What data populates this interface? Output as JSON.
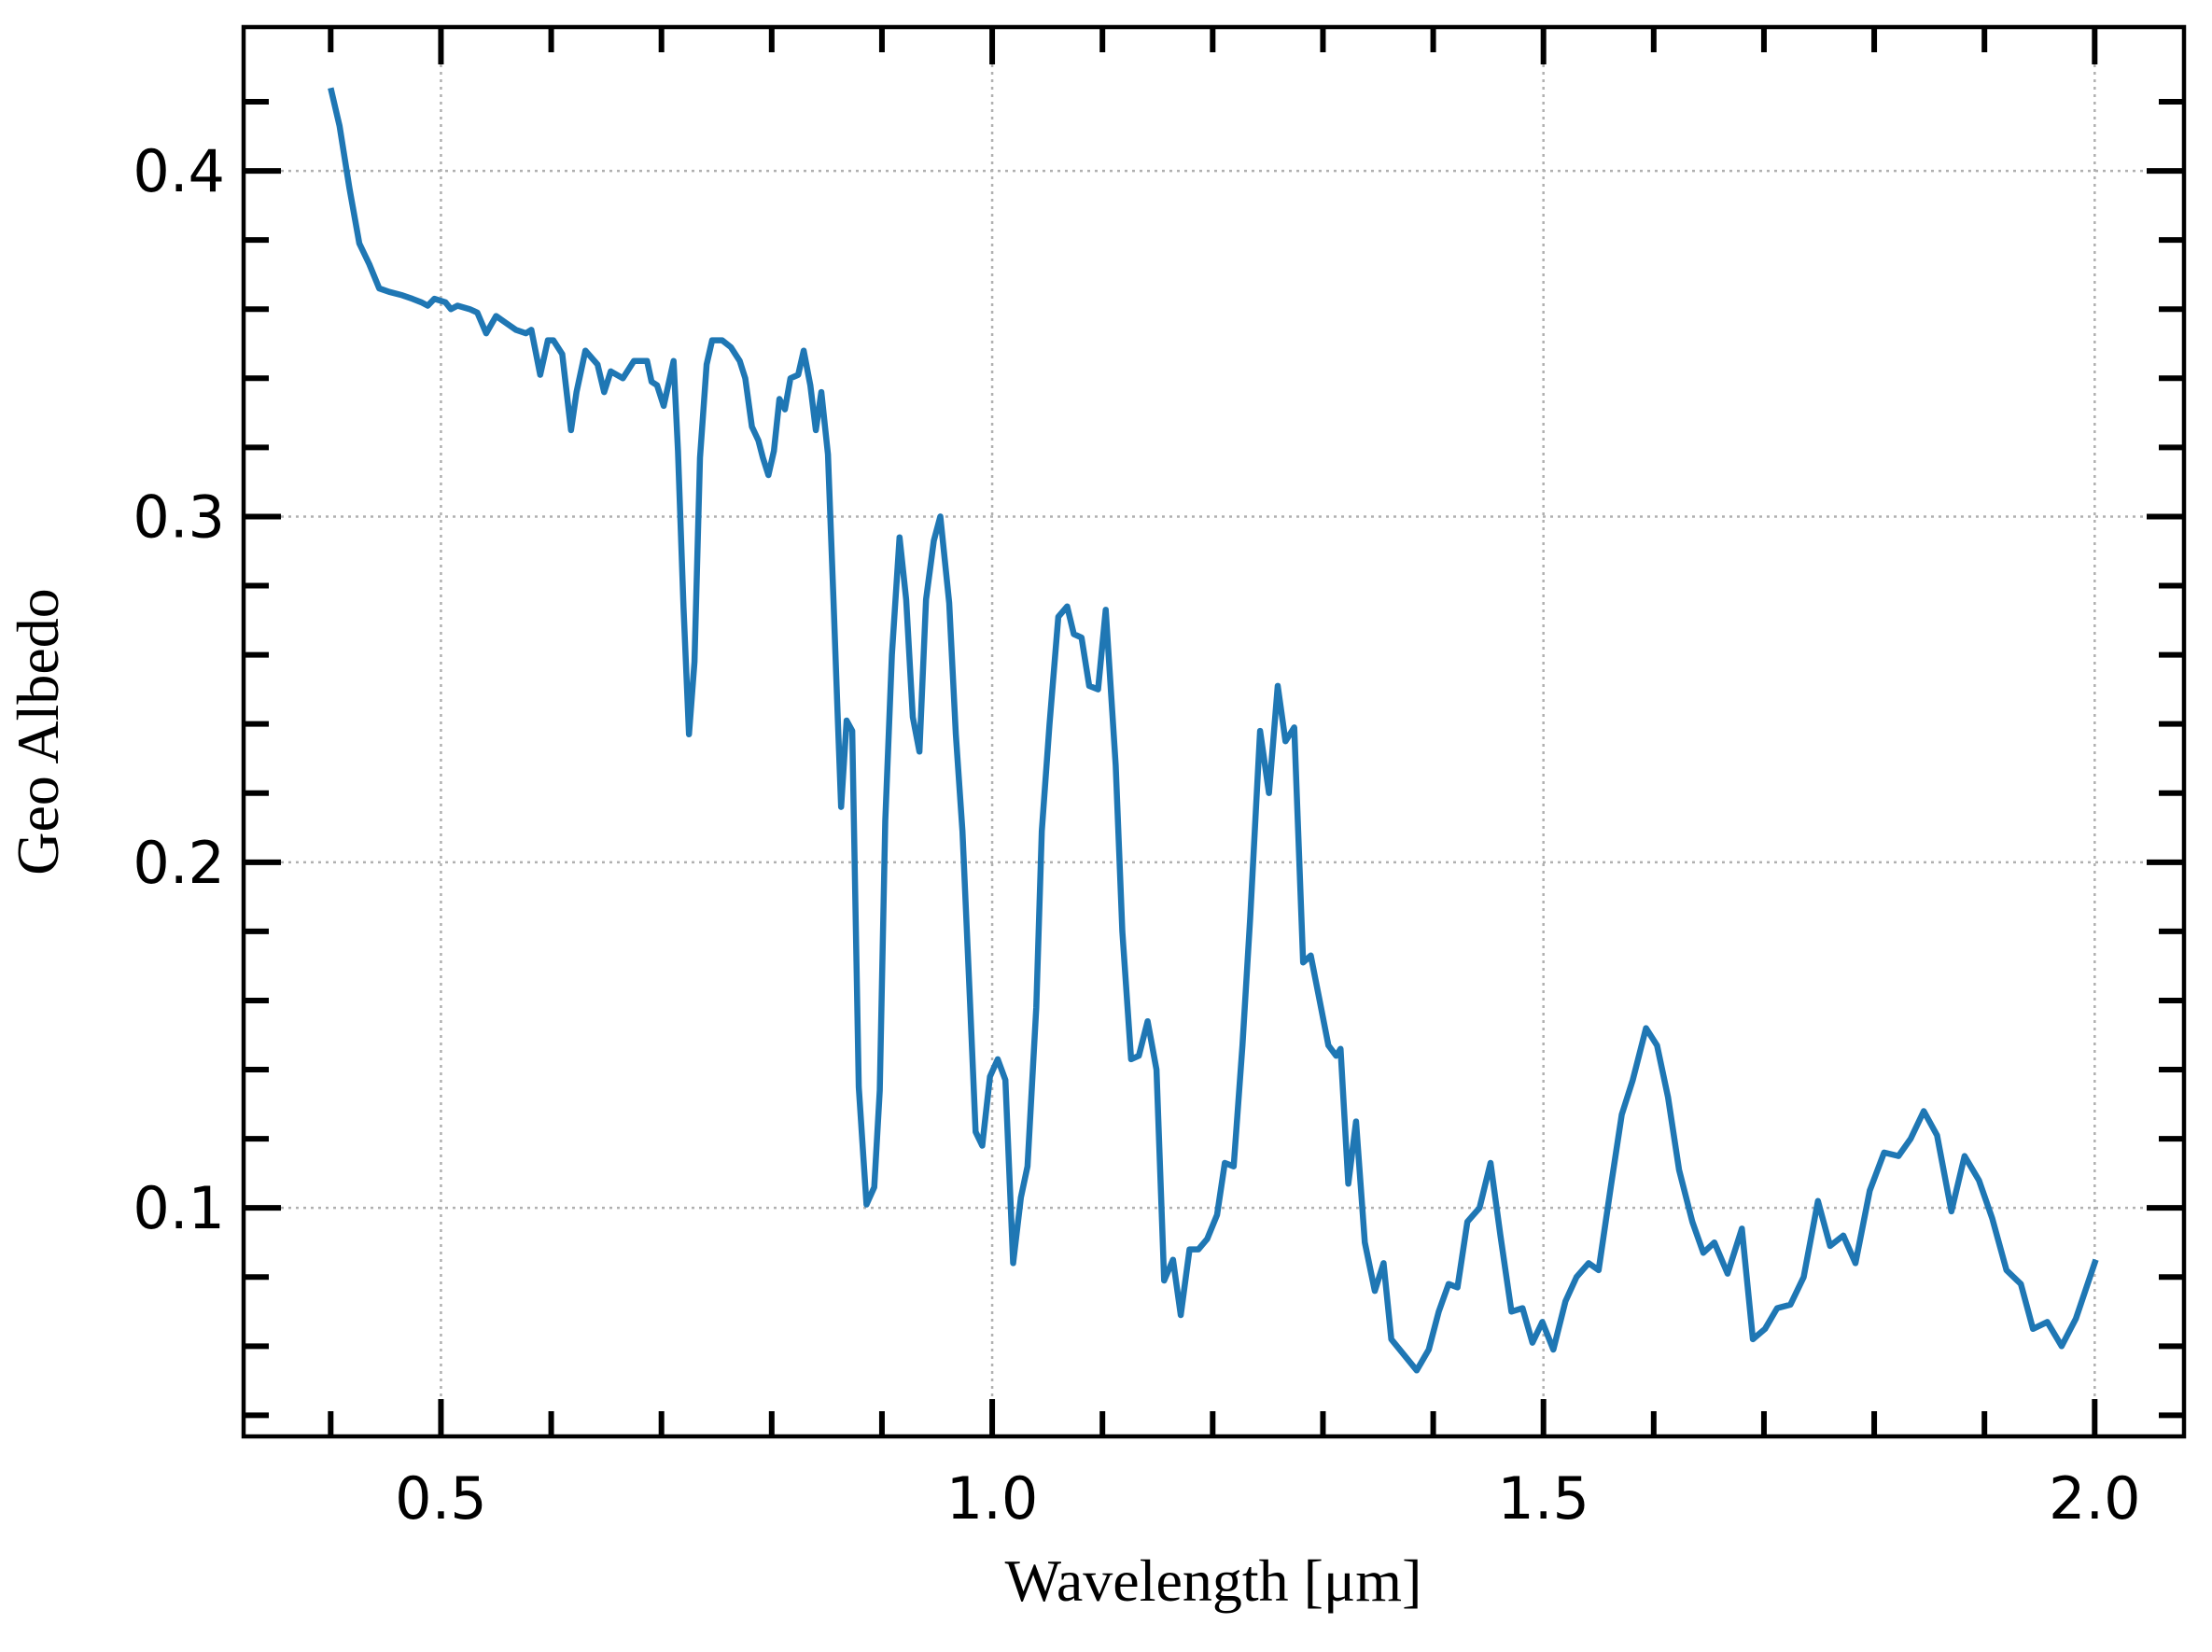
{
  "chart_data": {
    "type": "line",
    "xlabel": "Wavelength [μm]",
    "ylabel": "Geo Albedo",
    "x": [
      0.4,
      0.408,
      0.417,
      0.426,
      0.435,
      0.444,
      0.453,
      0.465,
      0.474,
      0.482,
      0.488,
      0.494,
      0.504,
      0.509,
      0.515,
      0.526,
      0.533,
      0.541,
      0.55,
      0.559,
      0.568,
      0.577,
      0.582,
      0.59,
      0.597,
      0.602,
      0.61,
      0.618,
      0.623,
      0.631,
      0.642,
      0.648,
      0.654,
      0.665,
      0.675,
      0.681,
      0.687,
      0.691,
      0.696,
      0.702,
      0.711,
      0.715,
      0.72,
      0.725,
      0.73,
      0.735,
      0.741,
      0.746,
      0.755,
      0.763,
      0.771,
      0.776,
      0.782,
      0.788,
      0.792,
      0.797,
      0.802,
      0.807,
      0.812,
      0.817,
      0.824,
      0.829,
      0.835,
      0.84,
      0.845,
      0.851,
      0.856,
      0.86,
      0.863,
      0.868,
      0.873,
      0.879,
      0.886,
      0.893,
      0.898,
      0.903,
      0.909,
      0.916,
      0.922,
      0.928,
      0.934,
      0.94,
      0.947,
      0.953,
      0.961,
      0.967,
      0.973,
      0.98,
      0.985,
      0.991,
      0.998,
      1.005,
      1.012,
      1.019,
      1.026,
      1.032,
      1.04,
      1.045,
      1.052,
      1.06,
      1.068,
      1.074,
      1.081,
      1.088,
      1.096,
      1.103,
      1.112,
      1.118,
      1.126,
      1.133,
      1.141,
      1.149,
      1.156,
      1.164,
      1.171,
      1.179,
      1.187,
      1.195,
      1.204,
      1.211,
      1.219,
      1.227,
      1.234,
      1.243,
      1.251,
      1.259,
      1.266,
      1.274,
      1.282,
      1.289,
      1.297,
      1.305,
      1.312,
      1.316,
      1.323,
      1.33,
      1.338,
      1.347,
      1.355,
      1.362,
      1.385,
      1.396,
      1.405,
      1.414,
      1.422,
      1.431,
      1.442,
      1.452,
      1.461,
      1.471,
      1.481,
      1.49,
      1.499,
      1.509,
      1.52,
      1.53,
      1.541,
      1.55,
      1.561,
      1.571,
      1.581,
      1.593,
      1.603,
      1.613,
      1.623,
      1.635,
      1.645,
      1.655,
      1.667,
      1.68,
      1.69,
      1.701,
      1.712,
      1.724,
      1.736,
      1.749,
      1.76,
      1.772,
      1.783,
      1.796,
      1.809,
      1.822,
      1.833,
      1.845,
      1.857,
      1.87,
      1.882,
      1.895,
      1.907,
      1.92,
      1.933,
      1.944,
      1.957,
      1.97,
      1.983,
      2.001
    ],
    "values": [
      0.424,
      0.413,
      0.395,
      0.379,
      0.373,
      0.366,
      0.365,
      0.364,
      0.363,
      0.362,
      0.361,
      0.363,
      0.362,
      0.36,
      0.361,
      0.36,
      0.359,
      0.353,
      0.358,
      0.356,
      0.354,
      0.353,
      0.354,
      0.341,
      0.351,
      0.351,
      0.347,
      0.325,
      0.336,
      0.348,
      0.344,
      0.336,
      0.342,
      0.34,
      0.345,
      0.345,
      0.345,
      0.339,
      0.338,
      0.332,
      0.345,
      0.319,
      0.274,
      0.237,
      0.258,
      0.317,
      0.344,
      0.351,
      0.351,
      0.349,
      0.345,
      0.34,
      0.326,
      0.322,
      0.317,
      0.312,
      0.319,
      0.334,
      0.331,
      0.34,
      0.341,
      0.348,
      0.338,
      0.325,
      0.336,
      0.318,
      0.276,
      0.241,
      0.216,
      0.241,
      0.238,
      0.135,
      0.101,
      0.106,
      0.134,
      0.212,
      0.26,
      0.294,
      0.276,
      0.242,
      0.232,
      0.276,
      0.293,
      0.3,
      0.275,
      0.237,
      0.209,
      0.159,
      0.122,
      0.118,
      0.138,
      0.143,
      0.137,
      0.084,
      0.103,
      0.112,
      0.158,
      0.209,
      0.24,
      0.271,
      0.274,
      0.266,
      0.265,
      0.251,
      0.25,
      0.273,
      0.228,
      0.18,
      0.143,
      0.144,
      0.154,
      0.14,
      0.079,
      0.085,
      0.069,
      0.088,
      0.088,
      0.091,
      0.098,
      0.113,
      0.112,
      0.147,
      0.184,
      0.238,
      0.22,
      0.251,
      0.235,
      0.239,
      0.171,
      0.173,
      0.16,
      0.147,
      0.144,
      0.146,
      0.107,
      0.125,
      0.09,
      0.076,
      0.084,
      0.062,
      0.053,
      0.059,
      0.07,
      0.078,
      0.077,
      0.096,
      0.1,
      0.113,
      0.092,
      0.07,
      0.071,
      0.061,
      0.067,
      0.059,
      0.073,
      0.08,
      0.084,
      0.082,
      0.106,
      0.127,
      0.137,
      0.152,
      0.147,
      0.132,
      0.111,
      0.096,
      0.087,
      0.09,
      0.081,
      0.094,
      0.062,
      0.065,
      0.071,
      0.072,
      0.08,
      0.102,
      0.089,
      0.092,
      0.084,
      0.105,
      0.116,
      0.115,
      0.12,
      0.128,
      0.121,
      0.099,
      0.115,
      0.108,
      0.097,
      0.082,
      0.078,
      0.065,
      0.067,
      0.06,
      0.068,
      0.085
    ],
    "color": "#1f77b4",
    "xlim": [
      0.321,
      2.081
    ],
    "ylim": [
      0.0339,
      0.4416
    ],
    "xticks": [
      0.5,
      {
        "value": 1.0,
        "label": "1.0"
      },
      1.5,
      {
        "value": 2.0,
        "label": "2.0"
      }
    ],
    "yticks": [
      0.1,
      0.2,
      0.3,
      0.4
    ],
    "xminorticks": [
      0.4,
      0.6,
      0.7,
      0.8,
      0.9,
      1.1,
      1.2,
      1.3,
      1.4,
      1.6,
      1.7,
      1.8,
      1.9
    ],
    "yminorticks": [
      0.04,
      0.06,
      0.08,
      0.12,
      0.14,
      0.16,
      0.18,
      0.22,
      0.24,
      0.26,
      0.28,
      0.32,
      0.34,
      0.36,
      0.38,
      0.42
    ],
    "grid": true
  }
}
